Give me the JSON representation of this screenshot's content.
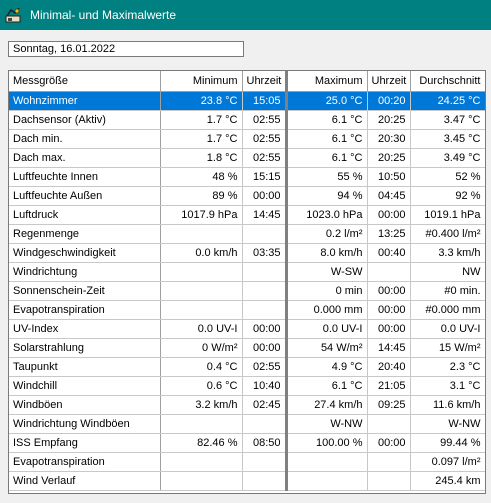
{
  "window": {
    "title": "Minimal- und Maximalwerte",
    "icon": "weather-station-icon"
  },
  "date_field": {
    "value": "Sonntag, 16.01.2022"
  },
  "table": {
    "headers": [
      "Messgröße",
      "Minimum",
      "Uhrzeit",
      "Maximum",
      "Uhrzeit",
      "Durchschnitt"
    ],
    "selected_row": 0,
    "colors": {
      "selection": "#0078d7",
      "titlebar": "#008080"
    },
    "rows": [
      [
        "Wohnzimmer",
        "23.8 °C",
        "15:05",
        "25.0 °C",
        "00:20",
        "24.25 °C"
      ],
      [
        "Dachsensor (Aktiv)",
        "1.7 °C",
        "02:55",
        "6.1 °C",
        "20:25",
        "3.47 °C"
      ],
      [
        "Dach min.",
        "1.7 °C",
        "02:55",
        "6.1 °C",
        "20:30",
        "3.45 °C"
      ],
      [
        "Dach max.",
        "1.8 °C",
        "02:55",
        "6.1 °C",
        "20:25",
        "3.49 °C"
      ],
      [
        "Luftfeuchte Innen",
        "48 %",
        "15:15",
        "55 %",
        "10:50",
        "52 %"
      ],
      [
        "Luftfeuchte Außen",
        "89 %",
        "00:00",
        "94 %",
        "04:45",
        "92 %"
      ],
      [
        "Luftdruck",
        "1017.9 hPa",
        "14:45",
        "1023.0 hPa",
        "00:00",
        "1019.1 hPa"
      ],
      [
        "Regenmenge",
        "",
        "",
        "0.2 l/m²",
        "13:25",
        "#0.400 l/m²"
      ],
      [
        "Windgeschwindigkeit",
        "0.0 km/h",
        "03:35",
        "8.0 km/h",
        "00:40",
        "3.3 km/h"
      ],
      [
        "Windrichtung",
        "",
        "",
        "W-SW",
        "",
        "NW"
      ],
      [
        "Sonnenschein-Zeit",
        "",
        "",
        "0 min",
        "00:00",
        "#0 min."
      ],
      [
        "Evapotranspiration",
        "",
        "",
        "0.000 mm",
        "00:00",
        "#0.000 mm"
      ],
      [
        "UV-Index",
        "0.0 UV-I",
        "00:00",
        "0.0 UV-I",
        "00:00",
        "0.0 UV-I"
      ],
      [
        "Solarstrahlung",
        "0 W/m²",
        "00:00",
        "54 W/m²",
        "14:45",
        "15 W/m²"
      ],
      [
        "Taupunkt",
        "0.4 °C",
        "02:55",
        "4.9 °C",
        "20:40",
        "2.3 °C"
      ],
      [
        "Windchill",
        "0.6 °C",
        "10:40",
        "6.1 °C",
        "21:05",
        "3.1 °C"
      ],
      [
        "Windböen",
        "3.2 km/h",
        "02:45",
        "27.4 km/h",
        "09:25",
        "11.6 km/h"
      ],
      [
        "Windrichtung Windböen",
        "",
        "",
        "W-NW",
        "",
        "W-NW"
      ],
      [
        "ISS Empfang",
        "82.46 %",
        "08:50",
        "100.00 %",
        "00:00",
        "99.44 %"
      ],
      [
        "Evapotranspiration",
        "",
        "",
        "",
        "",
        "0.097 l/m²"
      ],
      [
        "Wind Verlauf",
        "",
        "",
        "",
        "",
        "245.4 km"
      ]
    ]
  }
}
